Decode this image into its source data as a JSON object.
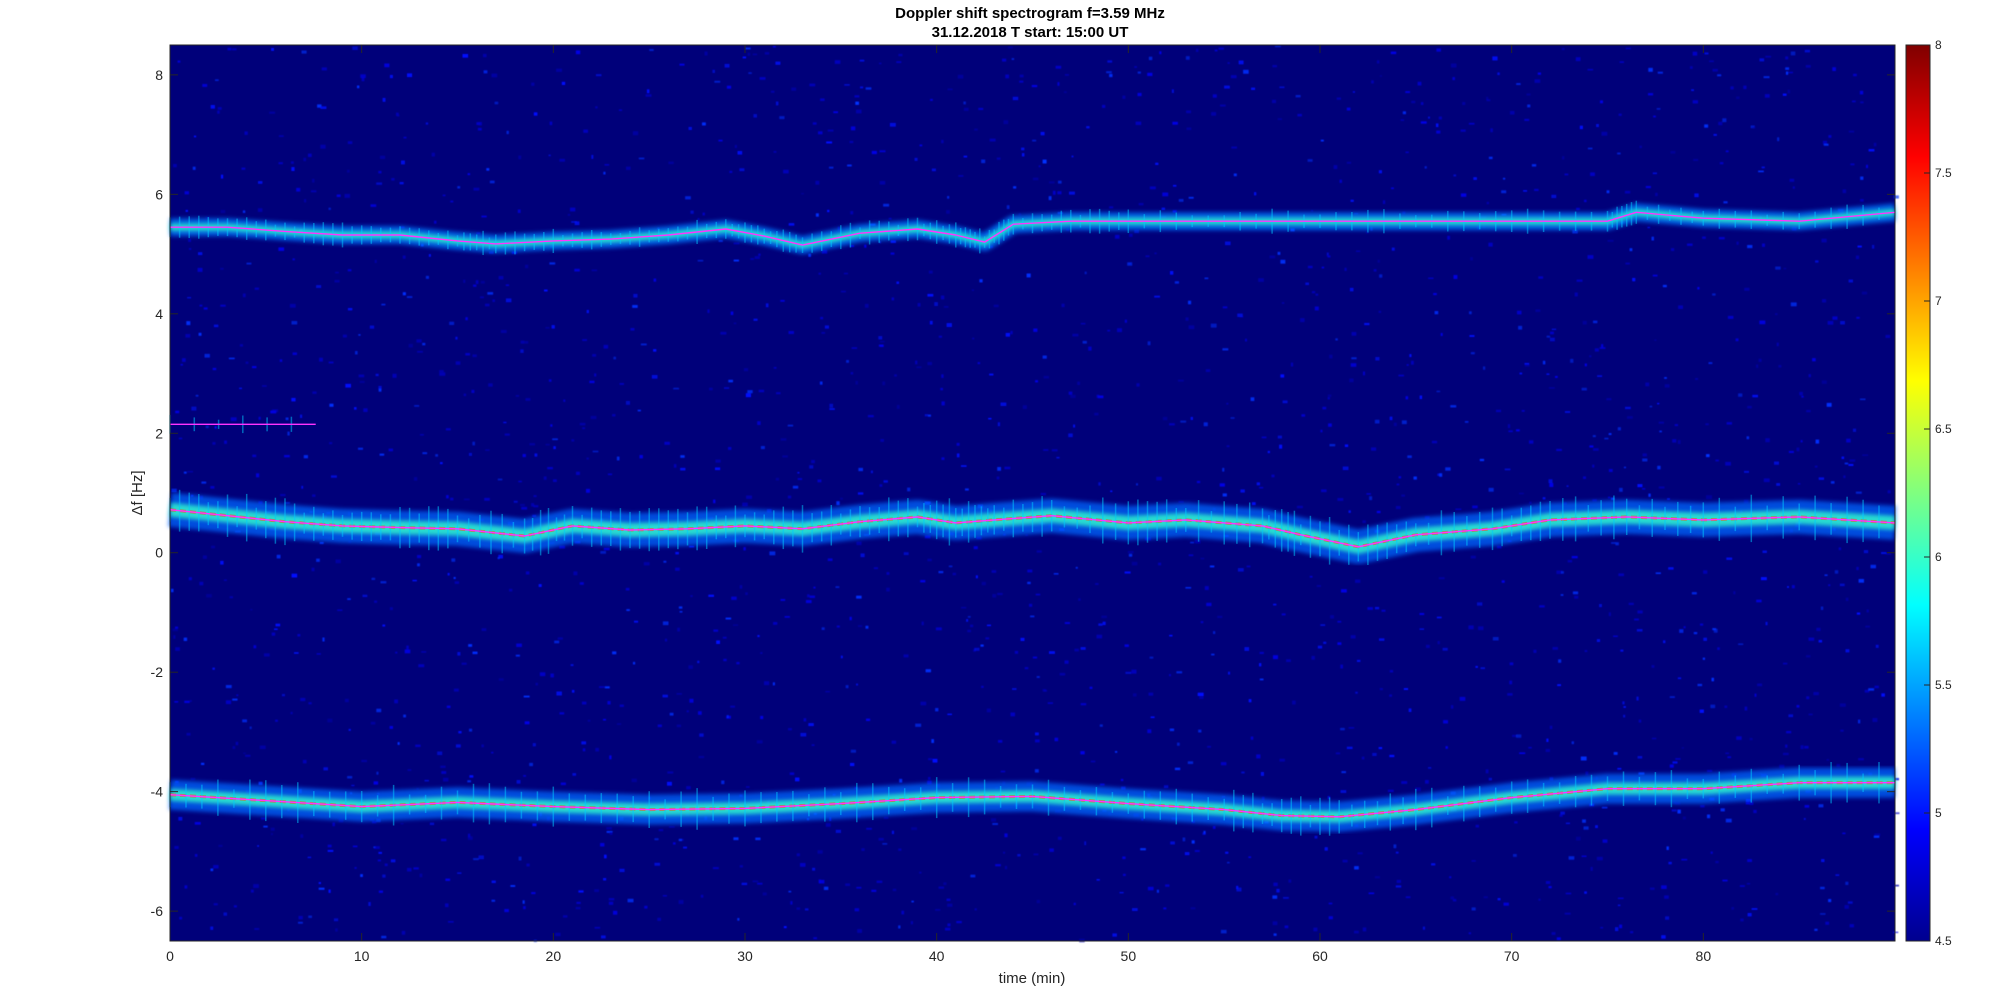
{
  "chart_data": {
    "type": "heatmap",
    "title": "Doppler shift spectrogram f=3.59 MHz",
    "subtitle": "31.12.2018   T start: 15:00 UT",
    "xlabel": "time (min)",
    "ylabel": "Δf [Hz]",
    "xlim": [
      0,
      90
    ],
    "ylim": [
      -6.5,
      8.5
    ],
    "xticks": [
      0,
      10,
      20,
      30,
      40,
      50,
      60,
      70,
      80
    ],
    "yticks": [
      -6,
      -4,
      -2,
      0,
      2,
      4,
      6,
      8
    ],
    "colorbar": {
      "colormap": "jet",
      "range": [
        4.5,
        8
      ],
      "ticks": [
        "4.5",
        "5",
        "5.5",
        "6",
        "6.5",
        "7",
        "7.5",
        "8"
      ]
    },
    "grid": false,
    "series": [
      {
        "x": [
          0,
          3,
          6,
          9,
          12,
          15,
          17,
          20,
          23,
          26,
          29,
          31,
          33,
          36,
          39,
          41,
          42.5,
          44,
          47,
          50,
          55,
          60,
          65,
          70,
          75,
          76.5,
          80,
          85,
          90
        ],
        "y": [
          5.45,
          5.45,
          5.38,
          5.32,
          5.32,
          5.22,
          5.17,
          5.22,
          5.25,
          5.32,
          5.42,
          5.3,
          5.15,
          5.35,
          5.42,
          5.32,
          5.2,
          5.5,
          5.55,
          5.55,
          5.55,
          5.55,
          5.55,
          5.55,
          5.55,
          5.7,
          5.6,
          5.55,
          5.7
        ]
      },
      {
        "x": [
          0,
          7.6
        ],
        "y": [
          2.15,
          2.15
        ]
      },
      {
        "x": [
          0,
          3,
          6,
          9,
          12,
          15,
          18.5,
          21,
          24,
          27,
          30,
          33,
          36,
          39,
          41,
          43,
          46,
          50,
          53,
          57,
          59,
          62,
          65,
          69,
          72,
          76,
          80,
          85,
          90
        ],
        "y": [
          0.72,
          0.62,
          0.52,
          0.45,
          0.42,
          0.4,
          0.28,
          0.45,
          0.38,
          0.4,
          0.45,
          0.4,
          0.52,
          0.6,
          0.5,
          0.55,
          0.62,
          0.5,
          0.55,
          0.45,
          0.3,
          0.1,
          0.3,
          0.4,
          0.55,
          0.6,
          0.55,
          0.6,
          0.5
        ]
      },
      {
        "x": [
          0,
          5,
          10,
          15,
          20,
          25,
          30,
          35,
          40,
          45,
          50,
          55,
          58,
          61,
          65,
          70,
          75,
          80,
          85,
          90
        ],
        "y": [
          -4.05,
          -4.15,
          -4.25,
          -4.18,
          -4.25,
          -4.3,
          -4.28,
          -4.2,
          -4.1,
          -4.08,
          -4.2,
          -4.3,
          -4.4,
          -4.42,
          -4.3,
          -4.1,
          -3.95,
          -3.95,
          -3.85,
          -3.85
        ]
      }
    ]
  }
}
